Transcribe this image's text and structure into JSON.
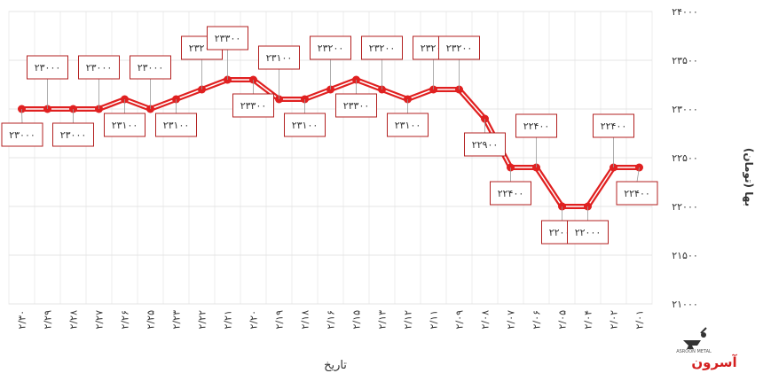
{
  "chart_data": {
    "type": "line",
    "xlabel": "تاریخ",
    "ylabel": "بها (تومان)",
    "ylim": [
      21000,
      24000
    ],
    "yticks": [
      21000,
      21500,
      22000,
      22500,
      23000,
      23500,
      24000
    ],
    "ytick_labels": [
      "۲۱۰۰۰",
      "۲۱۵۰۰",
      "۲۲۰۰۰",
      "۲۲۵۰۰",
      "۲۳۰۰۰",
      "۲۳۵۰۰",
      "۲۴۰۰۰"
    ],
    "grid": true,
    "line_color": "#e02020",
    "categories": [
      "۲/۳۰",
      "۲/۲۹",
      "۲/۲۸",
      "۲/۲۷",
      "۲/۲۶",
      "۲/۲۵",
      "۲/۲۳",
      "۲/۲۲",
      "۲/۲۱",
      "۲/۲۰",
      "۲/۱۹",
      "۲/۱۸",
      "۲/۱۶",
      "۲/۱۵",
      "۲/۱۳",
      "۲/۱۲",
      "۲/۱۱",
      "۲/۰۹",
      "۲/۰۸",
      "۲/۰۷",
      "۲/۰۶",
      "۲/۰۵",
      "۲/۰۴",
      "۲/۰۲",
      "۲/۰۱"
    ],
    "values": [
      23000,
      23000,
      23000,
      23000,
      23100,
      23000,
      23100,
      23200,
      23300,
      23300,
      23100,
      23100,
      23200,
      23300,
      23200,
      23100,
      23200,
      23200,
      22900,
      22400,
      22400,
      22000,
      22000,
      22400,
      22400
    ],
    "value_labels": [
      "۲۳۰۰۰",
      "۲۳۰۰۰",
      "۲۳۰۰۰",
      "۲۳۰۰۰",
      "۲۳۱۰۰",
      "۲۳۰۰۰",
      "۲۳۱۰۰",
      "۲۳۲۰۰",
      "۲۳۳۰۰",
      "۲۳۳۰۰",
      "۲۳۱۰۰",
      "۲۳۱۰۰",
      "۲۳۲۰۰",
      "۲۳۳۰۰",
      "۲۳۲۰۰",
      "۲۳۱۰۰",
      "۲۳۲۰۰",
      "۲۳۲۰۰",
      "۲۲۹۰۰",
      "۲۲۴۰۰",
      "۲۲۴۰۰",
      "۲۲۰۰۰",
      "۲۲۰۰۰",
      "۲۲۴۰۰",
      "۲۲۴۰۰"
    ],
    "label_positions": [
      "below",
      "above",
      "below",
      "above",
      "below",
      "above",
      "below",
      "above",
      "above",
      "below",
      "above",
      "below",
      "above",
      "below",
      "above",
      "below",
      "above",
      "above",
      "below",
      "below",
      "above",
      "below",
      "below",
      "above",
      "below"
    ]
  },
  "logo": {
    "text": "آسرون",
    "subtext": "ASROON METAL"
  }
}
